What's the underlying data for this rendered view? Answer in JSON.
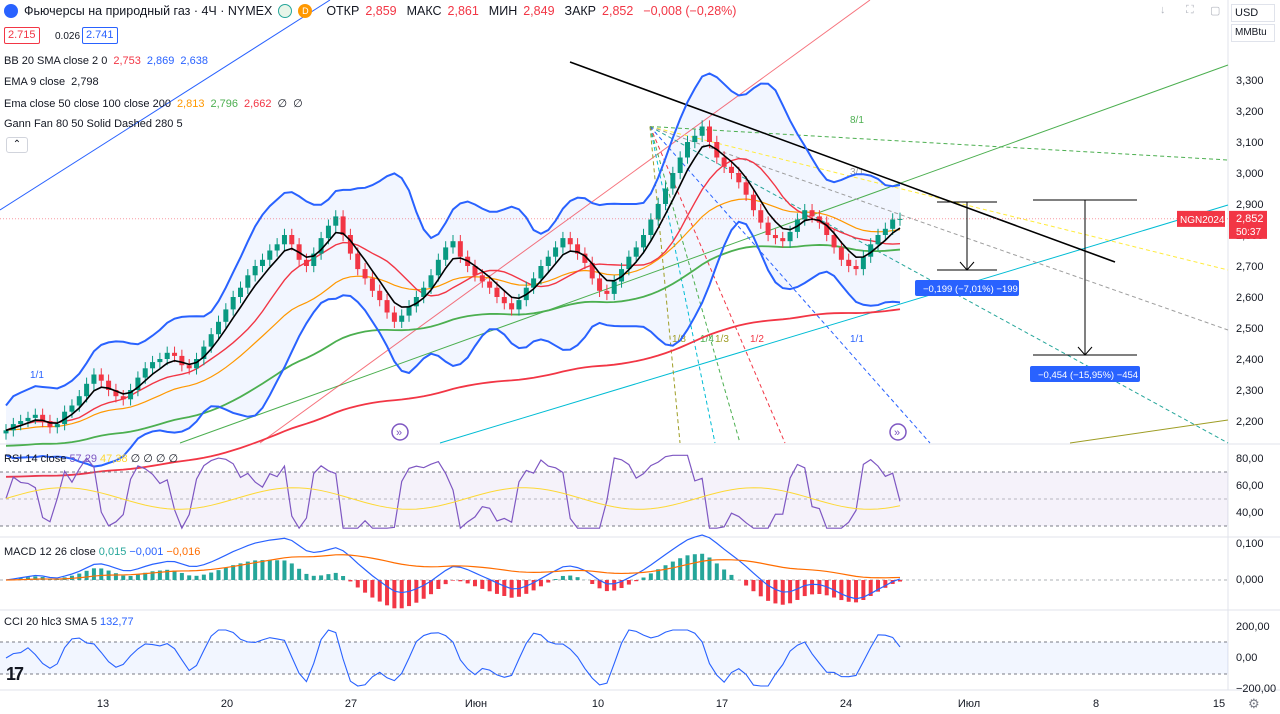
{
  "header": {
    "title": "Фьючерсы на природный газ · 4Ч · NYMEX",
    "open_label": "ОТКР",
    "open_value": "2,859",
    "high_label": "МАКС",
    "high_value": "2,861",
    "low_label": "МИН",
    "low_value": "2,849",
    "close_label": "ЗАКР",
    "close_value": "2,852",
    "change": "−0,008 (−0,28%)",
    "delay_badge": "D",
    "bid": "2.715",
    "spread": "0.026",
    "ask": "2.741",
    "currency": "USD",
    "unit": "MMBtu"
  },
  "indicators": [
    {
      "name": "BB 20 SMA close 2 0",
      "vals": [
        "2,753",
        "2,869",
        "2,638"
      ],
      "colors": [
        "#f23645",
        "#2962ff",
        "#2962ff"
      ]
    },
    {
      "name": "EMA 9 close",
      "vals": [
        "2,798"
      ],
      "colors": [
        "#131722"
      ]
    },
    {
      "name": "Ema close 50 close 100 close 200",
      "vals": [
        "2,813",
        "2,796",
        "2,662",
        "∅",
        "∅"
      ],
      "colors": [
        "#ff9800",
        "#4caf50",
        "#f23645",
        "#131722",
        "#131722"
      ]
    },
    {
      "name": "Gann Fan 80 50 Solid Dashed 280 5",
      "vals": [],
      "colors": []
    }
  ],
  "price_axis": {
    "ticks": [
      "3,300",
      "3,200",
      "3,100",
      "3,000",
      "2,900",
      "2,800",
      "2,700",
      "2,600",
      "2,500",
      "2,400",
      "2,300",
      "2,200"
    ],
    "symbol_badge": "NGN2024",
    "last_price": "2,852",
    "countdown": "50:37"
  },
  "time_axis": {
    "ticks": [
      "13",
      "20",
      "27",
      "Июн",
      "10",
      "17",
      "24",
      "Июл",
      "8",
      "15"
    ]
  },
  "gann_labels": [
    "1/1",
    "8/1",
    "3/1",
    "1/8",
    "1/4",
    "1/3",
    "1/2",
    "1/1"
  ],
  "measurements": [
    {
      "label": "−0,199 (−7,01%) −199"
    },
    {
      "label": "−0,454 (−15,95%) −454"
    }
  ],
  "rsi": {
    "legend": "RSI 14 close",
    "val1": "57,29",
    "val2": "47,38",
    "tail": "∅ ∅ ∅ ∅",
    "ticks": [
      "80,00",
      "60,00",
      "40,00"
    ]
  },
  "macd": {
    "legend": "MACD 12 26 close",
    "val1": "0,015",
    "val2": "−0,001",
    "val3": "−0,016",
    "ticks": [
      "0,100",
      "0,000"
    ]
  },
  "cci": {
    "legend": "CCI 20 hlc3 SMA 5",
    "val1": "132,77",
    "ticks": [
      "200,00",
      "0,00",
      "−200,00"
    ]
  },
  "chart_data": {
    "type": "candlestick",
    "symbol": "NGN2024",
    "timeframe": "4H",
    "closes": [
      2.17,
      2.19,
      2.2,
      2.21,
      2.22,
      2.2,
      2.18,
      2.19,
      2.23,
      2.25,
      2.28,
      2.32,
      2.35,
      2.33,
      2.3,
      2.28,
      2.27,
      2.3,
      2.34,
      2.37,
      2.39,
      2.4,
      2.42,
      2.41,
      2.38,
      2.37,
      2.4,
      2.44,
      2.48,
      2.52,
      2.56,
      2.6,
      2.63,
      2.67,
      2.7,
      2.72,
      2.75,
      2.77,
      2.8,
      2.77,
      2.72,
      2.7,
      2.74,
      2.79,
      2.83,
      2.86,
      2.8,
      2.74,
      2.69,
      2.66,
      2.62,
      2.59,
      2.55,
      2.52,
      2.54,
      2.57,
      2.6,
      2.63,
      2.67,
      2.72,
      2.76,
      2.78,
      2.73,
      2.7,
      2.67,
      2.65,
      2.63,
      2.6,
      2.58,
      2.56,
      2.59,
      2.63,
      2.66,
      2.7,
      2.73,
      2.76,
      2.79,
      2.77,
      2.74,
      2.71,
      2.66,
      2.62,
      2.61,
      2.65,
      2.69,
      2.73,
      2.76,
      2.8,
      2.85,
      2.9,
      2.95,
      3.0,
      3.05,
      3.1,
      3.12,
      3.15,
      3.1,
      3.05,
      3.02,
      3.0,
      2.97,
      2.93,
      2.88,
      2.84,
      2.8,
      2.79,
      2.78,
      2.81,
      2.85,
      2.88,
      2.86,
      2.84,
      2.8,
      2.76,
      2.72,
      2.7,
      2.69,
      2.73,
      2.77,
      2.8,
      2.82,
      2.85,
      2.852
    ]
  }
}
